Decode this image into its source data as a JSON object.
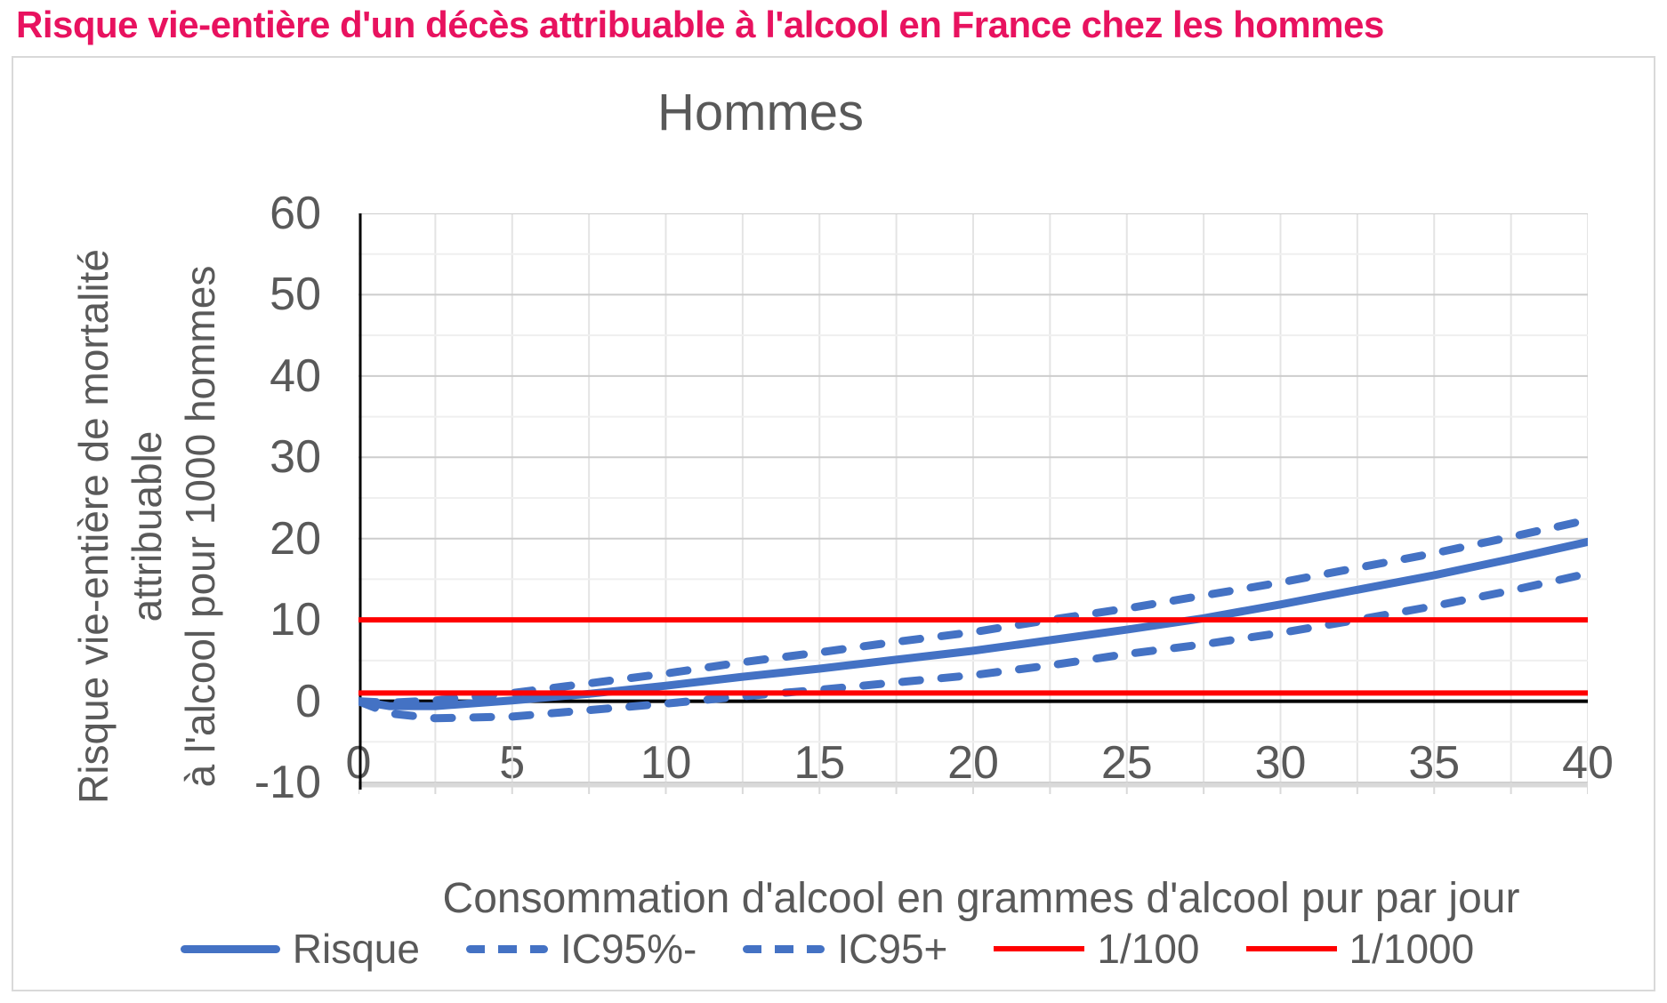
{
  "page": {
    "title": "Risque vie-entière d'un décès attribuable à l'alcool en France chez les hommes",
    "title_color": "#e8125f"
  },
  "chart": {
    "title": "Hommes",
    "y_axis_title_lines": {
      "line1": "Risque vie-entière de mortalité",
      "line2": "attribuable",
      "line3": "à l'alcool pour 1000 hommes"
    },
    "x_axis_title": "Consommation d'alcool en grammes d'alcool pur par jour",
    "text_color": "#595959",
    "grid_major_color": "#cdcdcd",
    "grid_minor_color": "#efefef",
    "grid_vertical_color": "#e4e4e4",
    "axis_bar_color": "#d9d9d9",
    "zero_line_color": "#000000"
  },
  "chart_data": {
    "type": "line",
    "title": "Hommes",
    "xlabel": "Consommation d'alcool en grammes d'alcool pur par jour",
    "ylabel": "Risque vie-entière de mortalité attribuable à l'alcool pour 1000 hommes",
    "xlim": [
      0,
      40
    ],
    "ylim": [
      -10,
      60
    ],
    "x_ticks": [
      0,
      5,
      10,
      15,
      20,
      25,
      30,
      35,
      40
    ],
    "y_ticks": [
      60,
      50,
      40,
      30,
      20,
      10,
      0,
      -10
    ],
    "grid": {
      "x_step": 2.5,
      "y_major_step": 10,
      "y_minor_step": 5,
      "grid_on": true
    },
    "legend_position": "bottom",
    "x": [
      0,
      1,
      2.5,
      5,
      7.5,
      10,
      12.5,
      15,
      17.5,
      20,
      22.5,
      25,
      27.5,
      30,
      32.5,
      35,
      37.5,
      40
    ],
    "series": [
      {
        "name": "Risque",
        "style": "solid",
        "color": "#4472C4",
        "values": [
          0,
          -0.6,
          -0.6,
          0.1,
          0.9,
          1.9,
          3.0,
          4.0,
          5.1,
          6.2,
          7.5,
          8.8,
          10.2,
          11.9,
          13.7,
          15.5,
          17.5,
          19.6
        ]
      },
      {
        "name": "IC95%-",
        "style": "dashed",
        "color": "#4472C4",
        "values": [
          0,
          -1.5,
          -2.1,
          -1.9,
          -1.1,
          -0.3,
          0.6,
          1.4,
          2.3,
          3.2,
          4.4,
          5.8,
          7.0,
          8.4,
          10.0,
          11.7,
          13.6,
          15.7
        ]
      },
      {
        "name": "IC95+",
        "style": "dashed",
        "color": "#4472C4",
        "values": [
          0,
          -0.2,
          0.1,
          1.0,
          2.2,
          3.4,
          4.8,
          6.0,
          7.3,
          8.5,
          10.0,
          11.4,
          13.0,
          14.6,
          16.4,
          18.2,
          20.2,
          22.3
        ]
      },
      {
        "name": "1/100",
        "style": "solid",
        "color": "#FF0000",
        "constant": 10
      },
      {
        "name": "1/1000",
        "style": "solid",
        "color": "#FF0000",
        "constant": 1
      }
    ]
  }
}
